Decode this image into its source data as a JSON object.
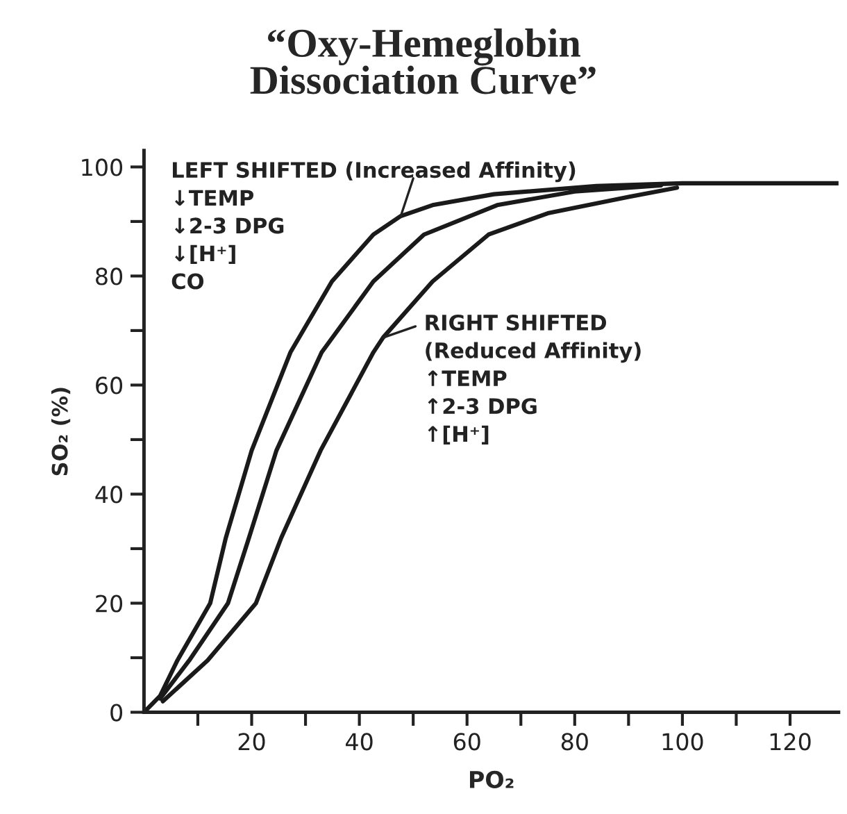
{
  "chart_data": {
    "type": "line",
    "title": "“Oxy-Hemeglobin\nDissociation Curve”",
    "xlabel": "PO₂",
    "ylabel": "SO₂ (%)",
    "series": [
      {
        "color": "#1a1a1a",
        "x": [
          0,
          3,
          6.2,
          12.3,
          15.2,
          20,
          27.2,
          34.9,
          42.6,
          47.7,
          53.6,
          65,
          84,
          100,
          129
        ],
        "values": [
          0,
          3,
          9.5,
          20,
          32,
          48,
          66,
          79,
          87.6,
          91,
          93,
          95,
          96.5,
          97,
          97
        ]
      },
      {
        "color": "#1a1a1a",
        "x": [
          3,
          8.4,
          15.6,
          19.5,
          24.6,
          33,
          42.6,
          52,
          65.6,
          80,
          96
        ],
        "values": [
          2.5,
          9.5,
          20,
          32,
          48,
          66,
          79,
          87.6,
          93,
          95.5,
          96.6
        ]
      },
      {
        "color": "#1a1a1a",
        "x": [
          3.5,
          11.8,
          20.8,
          25.5,
          32.8,
          42.6,
          44.4,
          53.6,
          64,
          75,
          90,
          99
        ],
        "values": [
          2,
          9.5,
          20,
          32,
          48,
          66,
          68.7,
          79,
          87.6,
          91.5,
          94.5,
          96.2
        ]
      }
    ],
    "annotations": [
      {
        "text": "LEFT SHIFTED (Increased Affinity)\n↓TEMP\n↓2-3 DPG\n↓[H⁺]\nCO",
        "x": 47.7,
        "y": 91
      },
      {
        "text": "RIGHT SHIFTED\n(Reduced Affinity)\n↑TEMP\n↑2-3 DPG\n↑[H⁺]",
        "x": 44.4,
        "y": 68.7
      }
    ],
    "xlim": [
      0,
      129
    ],
    "ylim": [
      0,
      103
    ],
    "xticks": [
      {
        "value": 10,
        "label": null
      },
      20,
      {
        "value": 30,
        "label": null
      },
      40,
      {
        "value": 50,
        "label": null
      },
      60,
      {
        "value": 70,
        "label": null
      },
      80,
      {
        "value": 90,
        "label": null
      },
      100,
      {
        "value": 110,
        "label": null
      },
      120
    ],
    "yticks": [
      0,
      {
        "value": 10,
        "label": null
      },
      20,
      {
        "value": 30,
        "label": null
      },
      40,
      {
        "value": 50,
        "label": null
      },
      60,
      {
        "value": 70,
        "label": null
      },
      80,
      {
        "value": 90,
        "label": null
      },
      100
    ],
    "grid": false,
    "legend": false,
    "marker": "none",
    "line_style": "solid"
  }
}
